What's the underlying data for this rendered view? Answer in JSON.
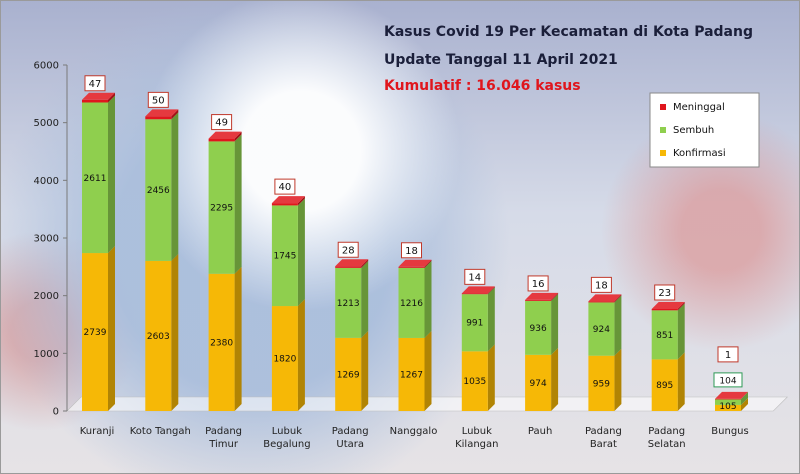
{
  "title_line1": "Kasus Covid 19 Per Kecamatan di Kota Padang",
  "title_line2": "Update Tanggal  11 April 2021",
  "cumulative": "Kumulatif : 16.046 kasus",
  "colors": {
    "Meninggal": "#e0161d",
    "Sembuh": "#8fcf4e",
    "Konfirmasi": "#f6b806"
  },
  "chart_data": {
    "type": "bar",
    "stacked": true,
    "categories": [
      [
        "Kuranji"
      ],
      [
        "Koto Tangah"
      ],
      [
        "Padang",
        "Timur"
      ],
      [
        "Lubuk",
        "Begalung"
      ],
      [
        "Padang",
        "Utara"
      ],
      [
        "Nanggalo"
      ],
      [
        "Lubuk",
        "Kilangan"
      ],
      [
        "Pauh"
      ],
      [
        "Padang",
        "Barat"
      ],
      [
        "Padang",
        "Selatan"
      ],
      [
        "Bungus"
      ]
    ],
    "series": [
      {
        "name": "Konfirmasi",
        "values": [
          2739,
          2603,
          2380,
          1820,
          1269,
          1267,
          1035,
          974,
          959,
          895,
          105
        ]
      },
      {
        "name": "Sembuh",
        "values": [
          2611,
          2456,
          2295,
          1745,
          1213,
          1216,
          991,
          936,
          924,
          851,
          104
        ]
      },
      {
        "name": "Meninggal",
        "values": [
          47,
          50,
          49,
          40,
          28,
          18,
          14,
          16,
          18,
          23,
          1
        ]
      }
    ],
    "ylim": [
      0,
      6000
    ],
    "yticks": [
      0,
      1000,
      2000,
      3000,
      4000,
      5000,
      6000
    ],
    "legend": [
      "Meninggal",
      "Sembuh",
      "Konfirmasi"
    ],
    "legend_position": "top-right"
  }
}
